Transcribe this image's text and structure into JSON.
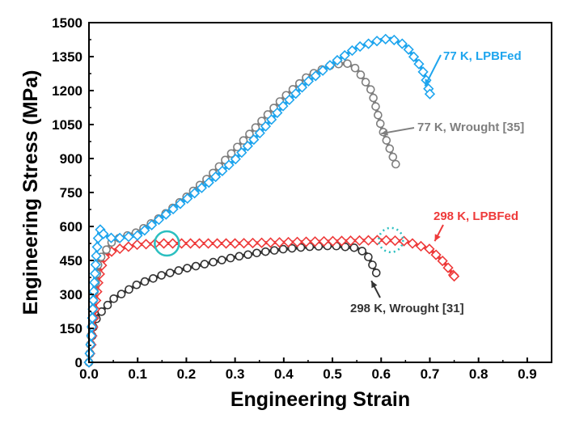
{
  "chart_data": {
    "type": "line",
    "title": "",
    "xlabel": "Engineering Strain",
    "ylabel": "Engineering Stress (MPa)",
    "xlim": [
      0,
      0.95
    ],
    "ylim": [
      0,
      1500
    ],
    "xticks": [
      0.0,
      0.1,
      0.2,
      0.3,
      0.4,
      0.5,
      0.6,
      0.7,
      0.8,
      0.9
    ],
    "xtick_labels": [
      "0.0",
      "0.1",
      "0.2",
      "0.3",
      "0.4",
      "0.5",
      "0.6",
      "0.7",
      "0.8",
      "0.9"
    ],
    "yticks": [
      0,
      150,
      300,
      450,
      600,
      750,
      900,
      1050,
      1200,
      1350,
      1500
    ],
    "ytick_labels": [
      "0",
      "150",
      "300",
      "450",
      "600",
      "750",
      "900",
      "1050",
      "1200",
      "1350",
      "1500"
    ],
    "grid": false,
    "series": [
      {
        "name": "77 K, LPBFed",
        "color": "#1ea5ee",
        "marker": "diamond",
        "x": [
          0.0,
          0.005,
          0.01,
          0.015,
          0.02,
          0.025,
          0.03,
          0.05,
          0.1,
          0.15,
          0.2,
          0.25,
          0.3,
          0.35,
          0.4,
          0.45,
          0.5,
          0.55,
          0.6,
          0.62,
          0.65,
          0.68,
          0.69,
          0.7
        ],
        "y": [
          0,
          120,
          320,
          470,
          570,
          595,
          565,
          545,
          560,
          640,
          720,
          800,
          895,
          1010,
          1135,
          1240,
          1320,
          1390,
          1425,
          1430,
          1400,
          1310,
          1265,
          1185
        ]
      },
      {
        "name": "77 K, Wrought [35]",
        "color": "#7f7f7f",
        "marker": "circle",
        "x": [
          0.0,
          0.005,
          0.01,
          0.02,
          0.05,
          0.1,
          0.15,
          0.2,
          0.25,
          0.3,
          0.35,
          0.4,
          0.45,
          0.5,
          0.53,
          0.55,
          0.58,
          0.6,
          0.62,
          0.63
        ],
        "y": [
          0,
          150,
          290,
          450,
          540,
          575,
          645,
          730,
          825,
          940,
          1055,
          1170,
          1265,
          1315,
          1320,
          1295,
          1200,
          1040,
          930,
          875
        ]
      },
      {
        "name": "298 K, LPBFed",
        "color": "#ee3a3a",
        "marker": "diamond",
        "x": [
          0.0,
          0.005,
          0.01,
          0.02,
          0.03,
          0.05,
          0.1,
          0.15,
          0.2,
          0.3,
          0.4,
          0.5,
          0.6,
          0.65,
          0.7,
          0.73,
          0.75
        ],
        "y": [
          0,
          80,
          190,
          370,
          460,
          495,
          520,
          525,
          525,
          525,
          530,
          535,
          540,
          535,
          500,
          440,
          380
        ]
      },
      {
        "name": "298 K, Wrought [31]",
        "color": "#333333",
        "marker": "circle",
        "x": [
          0.0,
          0.005,
          0.01,
          0.02,
          0.05,
          0.1,
          0.15,
          0.2,
          0.25,
          0.3,
          0.35,
          0.4,
          0.45,
          0.5,
          0.55,
          0.57,
          0.58,
          0.59
        ],
        "y": [
          0,
          90,
          170,
          210,
          280,
          345,
          385,
          415,
          440,
          465,
          485,
          500,
          510,
          515,
          505,
          480,
          440,
          395
        ]
      }
    ],
    "annotations": [
      {
        "text": "77 K, LPBFed",
        "series": 0,
        "color": "#1ea5ee",
        "arrow_to": [
          0.69,
          1220
        ]
      },
      {
        "text": "77 K, Wrought [35]",
        "series": 1,
        "color": "#7f7f7f",
        "arrow_to": [
          0.6,
          1010
        ]
      },
      {
        "text": "298 K, LPBFed",
        "series": 2,
        "color": "#ee3a3a",
        "arrow_to": [
          0.71,
          535
        ]
      },
      {
        "text": "298 K, Wrought [31]",
        "series": 3,
        "color": "#333333",
        "arrow_to": [
          0.58,
          360
        ]
      }
    ],
    "highlights": [
      {
        "style": "solid-circle",
        "at": [
          0.16,
          525
        ],
        "color": "#2bbfc0"
      },
      {
        "style": "dotted-circle",
        "at": [
          0.62,
          540
        ],
        "color": "#2bbfc0"
      }
    ]
  }
}
